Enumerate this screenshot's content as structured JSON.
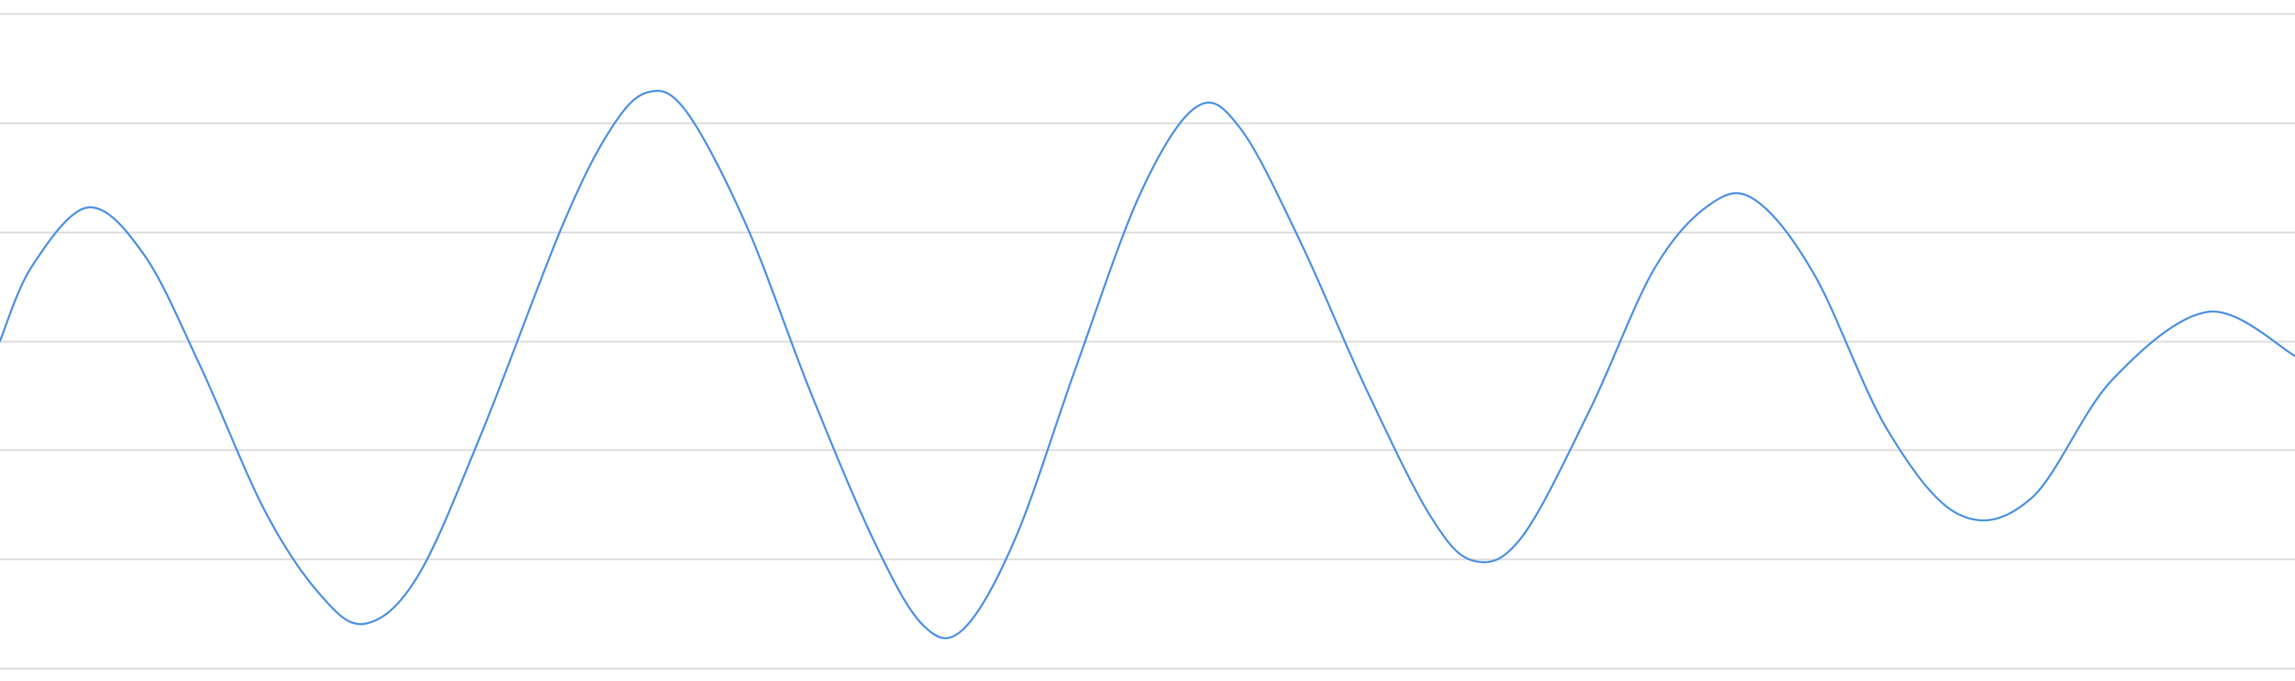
{
  "chart_data": {
    "type": "line",
    "grid": true,
    "legend": "none",
    "ylim": [
      -1,
      1
    ],
    "gridlines_y": [
      -1,
      -0.667,
      -0.333,
      0,
      0.333,
      0.667,
      1
    ],
    "line_color": "#4a90e2",
    "grid_color": "#d9d9d9",
    "series": [
      {
        "color": "#4a90e2",
        "points": [
          [
            0,
            0.0
          ],
          [
            40,
            0.229
          ],
          [
            110,
            0.408
          ],
          [
            180,
            0.261
          ],
          [
            250,
            -0.08
          ],
          [
            330,
            -0.52
          ],
          [
            400,
            -0.779
          ],
          [
            455,
            -0.864
          ],
          [
            520,
            -0.72
          ],
          [
            600,
            -0.28
          ],
          [
            700,
            0.35
          ],
          [
            760,
            0.645
          ],
          [
            807,
            0.76
          ],
          [
            855,
            0.7
          ],
          [
            930,
            0.35
          ],
          [
            1010,
            -0.16
          ],
          [
            1090,
            -0.62
          ],
          [
            1150,
            -0.87
          ],
          [
            1200,
            -0.88
          ],
          [
            1265,
            -0.6
          ],
          [
            1340,
            -0.08
          ],
          [
            1420,
            0.45
          ],
          [
            1490,
            0.715
          ],
          [
            1545,
            0.648
          ],
          [
            1620,
            0.3
          ],
          [
            1700,
            -0.14
          ],
          [
            1780,
            -0.53
          ],
          [
            1835,
            -0.672
          ],
          [
            1895,
            -0.6
          ],
          [
            1980,
            -0.21
          ],
          [
            2060,
            0.22
          ],
          [
            2130,
            0.418
          ],
          [
            2186,
            0.43
          ],
          [
            2260,
            0.2
          ],
          [
            2350,
            -0.27
          ],
          [
            2440,
            -0.531
          ],
          [
            2530,
            -0.48
          ],
          [
            2630,
            -0.12
          ],
          [
            2750,
            0.089
          ],
          [
            2858,
            -0.046
          ]
        ]
      }
    ]
  }
}
